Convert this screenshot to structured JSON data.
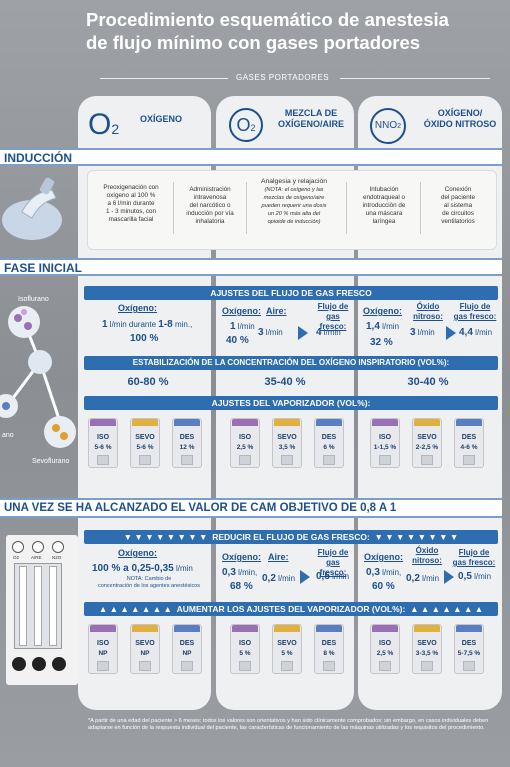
{
  "title_line1": "Procedimiento esquemático de  anestesia",
  "title_line2": "de flujo mínimo con gases portadores",
  "gases_label": "GASES PORTADORES",
  "columns": [
    {
      "icon_text": "O",
      "icon_sub": "2",
      "label": "OXÍGENO",
      "dots": "AIRE"
    },
    {
      "icon_text": "O",
      "icon_sub": "2",
      "label_line1": "MEZCLA DE",
      "label_line2": "OXÍGENO/AIRE"
    },
    {
      "icon_text": "NNO",
      "icon_sub": "2",
      "label_line1": "OXÍGENO/",
      "label_line2": "ÓXIDO NITROSO"
    }
  ],
  "induccion": {
    "label": "INDUCCIÓN",
    "items": [
      [
        "Preoxigenación con",
        "oxígeno al 100 %",
        "a 6 l/min durante",
        "1 - 3 minutos, con",
        "mascarilla facial"
      ],
      [
        "Administración",
        "intravenosa",
        "del narcótico o",
        "inducción por vía",
        "inhalatoria"
      ],
      [
        "Analgesia y relajación",
        "(NOTA: el oxígeno y las",
        "mezclas de oxígeno/aire",
        "pueden requerir una dosis",
        "un 20 % más alta del",
        "opioide de inducción)"
      ],
      [
        "Intubación",
        "endotraqueal o",
        "introducción de",
        "una máscara",
        "laríngea"
      ],
      [
        "Conexión",
        "del paciente",
        "al sistema",
        "de circuitos",
        "ventilatorios"
      ]
    ]
  },
  "fase_inicial": {
    "label": "FASE INICIAL"
  },
  "molecules": {
    "iso": "Isoflurano",
    "sevo": "Sevoflurano",
    "des": "ano"
  },
  "flujo": {
    "bar": "AJUSTES DEL FLUJO DE GAS FRESCO",
    "c1": {
      "h": "Oxígeno:",
      "v1": "1",
      "u1": "l/min durante",
      "v2": "1-8",
      "u2": "min.,",
      "v3": "100 %"
    },
    "c2": {
      "h1": "Oxígeno:",
      "h2": "Aire:",
      "h3a": "Flujo de",
      "h3b": "gas fresco:",
      "a": "1",
      "au": "l/min",
      "b": "3",
      "bu": "l/min",
      "pct": "40 %",
      "r": "4",
      "ru": "l/min"
    },
    "c3": {
      "h1": "Óxido",
      "h1b": "nitroso:",
      "h0": "Oxígeno:",
      "h3a": "Flujo de",
      "h3b": "gas fresco:",
      "a": "1,4",
      "au": "l/min",
      "b": "3",
      "bu": "l/min",
      "pct": "32 %",
      "r": "4,4",
      "ru": "l/min"
    }
  },
  "estab": {
    "bar": "ESTABILIZACIÓN DE LA CONCENTRACIÓN DEL OXÍGENO INSPIRATORIO (VOL%):",
    "v": [
      "60-80 %",
      "35-40 %",
      "30-40 %"
    ]
  },
  "vap1": {
    "bar": "AJUSTES DEL VAPORIZADOR (VOL%):",
    "cols": [
      [
        {
          "n": "ISO",
          "v": "5-6 %"
        },
        {
          "n": "SEVO",
          "v": "5-6 %"
        },
        {
          "n": "DES",
          "v": "12 %"
        }
      ],
      [
        {
          "n": "ISO",
          "v": "2,5 %"
        },
        {
          "n": "SEVO",
          "v": "3,5 %"
        },
        {
          "n": "DES",
          "v": "6 %"
        }
      ],
      [
        {
          "n": "ISO",
          "v": "1-1,5 %"
        },
        {
          "n": "SEVO",
          "v": "2-2,5 %"
        },
        {
          "n": "DES",
          "v": "4-6 %"
        }
      ]
    ]
  },
  "cam": {
    "label": "UNA VEZ SE HA ALCANZADO EL VALOR DE CAM OBJETIVO DE 0,8 A 1"
  },
  "gauges": {
    "g1": "O",
    "g1s": "2",
    "g2": "AIRE",
    "g3": "N",
    "g3s": "2",
    "g3e": "O"
  },
  "reducir": {
    "bar": "REDUCIR EL FLUJO DE GAS FRESCO:",
    "c1": {
      "h": "Oxígeno:",
      "v": "100 % a 0,25-0,35",
      "u": "l/min",
      "note1": "NOTA: Cambio de",
      "note2": "concentración de los agentes anestésicos"
    },
    "c2": {
      "h1": "Oxígeno:",
      "h2": "Aire:",
      "h3a": "Flujo de",
      "h3b": "gas fresco:",
      "a": "0,3",
      "au": "l/min,",
      "b": "0,2",
      "bu": "l/min",
      "pct": "68 %",
      "r": "0,5",
      "ru": "l/min"
    },
    "c3": {
      "h0": "Oxígeno:",
      "h1": "Óxido",
      "h1b": "nitroso:",
      "h3a": "Flujo de",
      "h3b": "gas fresco:",
      "a": "0,3",
      "au": "l/min,",
      "b": "0,2",
      "bu": "l/min",
      "pct": "60 %",
      "r": "0,5",
      "ru": "l/min"
    }
  },
  "vap2": {
    "bar": "AUMENTAR LOS AJUSTES DEL VAPORIZADOR (VOL%):",
    "cols": [
      [
        {
          "n": "ISO",
          "v": "NP"
        },
        {
          "n": "SEVO",
          "v": "NP"
        },
        {
          "n": "DES",
          "v": "NP"
        }
      ],
      [
        {
          "n": "ISO",
          "v": "5 %"
        },
        {
          "n": "SEVO",
          "v": "5 %"
        },
        {
          "n": "DES",
          "v": "8 %"
        }
      ],
      [
        {
          "n": "ISO",
          "v": "2,5 %"
        },
        {
          "n": "SEVO",
          "v": "3-3,5 %"
        },
        {
          "n": "DES",
          "v": "5-7,5 %"
        }
      ]
    ]
  },
  "footnote": "*A partir de una edad del paciente > 6 meses; todos los valores son orientativos y han sido clínicamente comprobados; sin embargo, en casos individuales deben adaptarse en función de la respuesta individual del paciente, las características de funcionamiento de las máquinas utilizadas y los requisitos del procedimiento.",
  "colors": {
    "blue": "#2e6db0",
    "dark": "#1d4f8f",
    "iso": "#9b6fb4",
    "sevo": "#e0b040",
    "des": "#5a7fc0"
  }
}
